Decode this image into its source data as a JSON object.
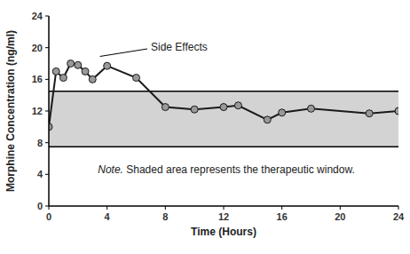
{
  "chart_data": {
    "type": "line",
    "x_label": "Time (Hours)",
    "y_label": "Morphine Concentration (ng/ml)",
    "annotation": "Side Effects",
    "note": "Note. Shaded area represents the therapeutic window.",
    "x": [
      0,
      0.5,
      1,
      1.5,
      2,
      2.5,
      3,
      4,
      6,
      8,
      10,
      12,
      13,
      15,
      16,
      18,
      22,
      24
    ],
    "values": [
      10,
      17,
      16.2,
      18,
      17.8,
      17,
      16,
      17.7,
      16.2,
      12.5,
      12.2,
      12.5,
      12.7,
      10.9,
      11.8,
      12.3,
      11.7,
      12
    ],
    "therapeutic_window": [
      7.5,
      14.5
    ],
    "color": "#1a1a1a",
    "marker": "circle",
    "xlim": [
      0,
      24
    ],
    "xticks": [
      0,
      4,
      8,
      12,
      16,
      20,
      24
    ],
    "ylim": [
      0,
      24
    ],
    "yticks": [
      0,
      4,
      8,
      12,
      16,
      20,
      24
    ],
    "grid": false
  }
}
